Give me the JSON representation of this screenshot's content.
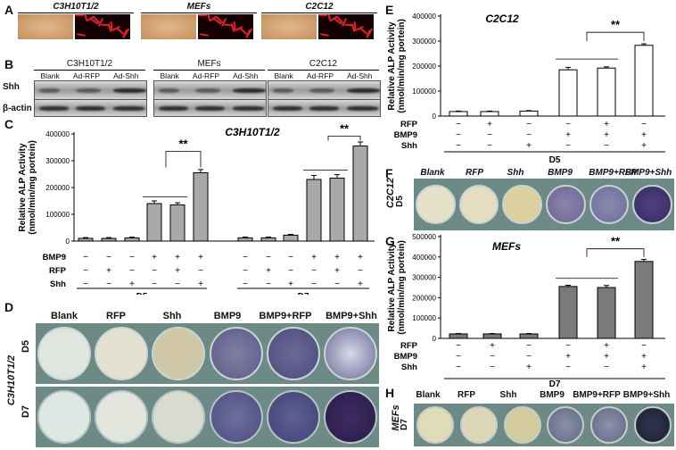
{
  "panelA": {
    "label": "A",
    "groups": [
      "C3H10T1/2",
      "MEFs",
      "C2C12"
    ]
  },
  "panelB": {
    "label": "B",
    "groups": [
      "C3H10T1/2",
      "MEFs",
      "C2C12"
    ],
    "lanes": [
      "Blank",
      "Ad-RFP",
      "Ad-Shh"
    ],
    "rows": [
      "Shh",
      "β-actin"
    ]
  },
  "panelC": {
    "label": "C",
    "title": "C3H10T1/2",
    "ylabel1": "Relative ALP Activity",
    "ylabel2": "(nmol/min/mg portein)",
    "yticks": [
      "0",
      "100000",
      "200000",
      "300000",
      "400000"
    ],
    "rowlabels": [
      "BMP9",
      "RFP",
      "Shh"
    ],
    "rows": [
      [
        "−",
        "−",
        "−",
        "+",
        "+",
        "+",
        "−",
        "−",
        "−",
        "+",
        "+",
        "+"
      ],
      [
        "−",
        "+",
        "−",
        "−",
        "+",
        "−",
        "−",
        "+",
        "−",
        "−",
        "+",
        "−"
      ],
      [
        "−",
        "−",
        "+",
        "−",
        "−",
        "+",
        "−",
        "−",
        "+",
        "−",
        "−",
        "+"
      ]
    ],
    "days": [
      "D5",
      "D7"
    ],
    "sig": "**"
  },
  "panelD": {
    "label": "D",
    "cols": [
      "Blank",
      "RFP",
      "Shh",
      "BMP9",
      "BMP9+RFP",
      "BMP9+Shh"
    ],
    "side": "C3H10T1/2",
    "days": [
      "D5",
      "D7"
    ]
  },
  "panelE": {
    "label": "E",
    "title": "C2C12",
    "ylabel1": "Relative ALP Activity",
    "ylabel2": "(nmol/min/mg portein)",
    "yticks": [
      "0",
      "100000",
      "200000",
      "300000",
      "400000"
    ],
    "rowlabels": [
      "RFP",
      "BMP9",
      "Shh"
    ],
    "rows": [
      [
        "−",
        "+",
        "−",
        "−",
        "+",
        "−"
      ],
      [
        "−",
        "−",
        "−",
        "+",
        "+",
        "+"
      ],
      [
        "−",
        "−",
        "+",
        "−",
        "−",
        "+"
      ]
    ],
    "day": "D5",
    "sig": "**"
  },
  "panelF": {
    "label": "F",
    "cols": [
      "Blank",
      "RFP",
      "Shh",
      "BMP9",
      "BMP9+RFP",
      "BMP9+Shh"
    ],
    "side": "C2C12",
    "day": "D5"
  },
  "panelG": {
    "label": "G",
    "title": "MEFs",
    "ylabel1": "Relative ALP Activity",
    "ylabel2": "(nmol/min/mg portein)",
    "yticks": [
      "0",
      "100000",
      "200000",
      "300000",
      "400000",
      "500000"
    ],
    "rowlabels": [
      "RFP",
      "BMP9",
      "Shh"
    ],
    "rows": [
      [
        "−",
        "+",
        "−",
        "−",
        "+",
        "−"
      ],
      [
        "−",
        "−",
        "−",
        "+",
        "+",
        "+"
      ],
      [
        "−",
        "−",
        "+",
        "−",
        "−",
        "+"
      ]
    ],
    "day": "D7",
    "sig": "**"
  },
  "panelH": {
    "label": "H",
    "cols": [
      "Blank",
      "RFP",
      "Shh",
      "BMP9",
      "BMP9+RFP",
      "BMP9+Shh"
    ],
    "side": "MEFs",
    "day": "D7"
  },
  "chart_data": [
    {
      "type": "bar",
      "title": "C3H10T1/2",
      "ylabel": "Relative ALP Activity (nmol/min/mg portein)",
      "ylim": [
        0,
        400000
      ],
      "groups": [
        "D5",
        "D7"
      ],
      "values": [
        10000,
        10000,
        12000,
        140000,
        135000,
        255000,
        12000,
        12000,
        22000,
        230000,
        235000,
        355000
      ],
      "errors": [
        3000,
        3000,
        3000,
        10000,
        8000,
        12000,
        3000,
        3000,
        3000,
        15000,
        13000,
        15000
      ]
    },
    {
      "type": "bar",
      "title": "C2C12",
      "ylabel": "Relative ALP Activity (nmol/min/mg portein)",
      "ylim": [
        0,
        400000
      ],
      "values": [
        18000,
        18000,
        20000,
        185000,
        192000,
        283000
      ],
      "errors": [
        2000,
        2000,
        2000,
        10000,
        5000,
        6000
      ]
    },
    {
      "type": "bar",
      "title": "MEFs",
      "ylabel": "Relative ALP Activity (nmol/min/mg portein)",
      "ylim": [
        0,
        500000
      ],
      "values": [
        22000,
        22000,
        22000,
        255000,
        250000,
        378000
      ],
      "errors": [
        2000,
        2000,
        2000,
        6000,
        10000,
        10000
      ]
    }
  ]
}
